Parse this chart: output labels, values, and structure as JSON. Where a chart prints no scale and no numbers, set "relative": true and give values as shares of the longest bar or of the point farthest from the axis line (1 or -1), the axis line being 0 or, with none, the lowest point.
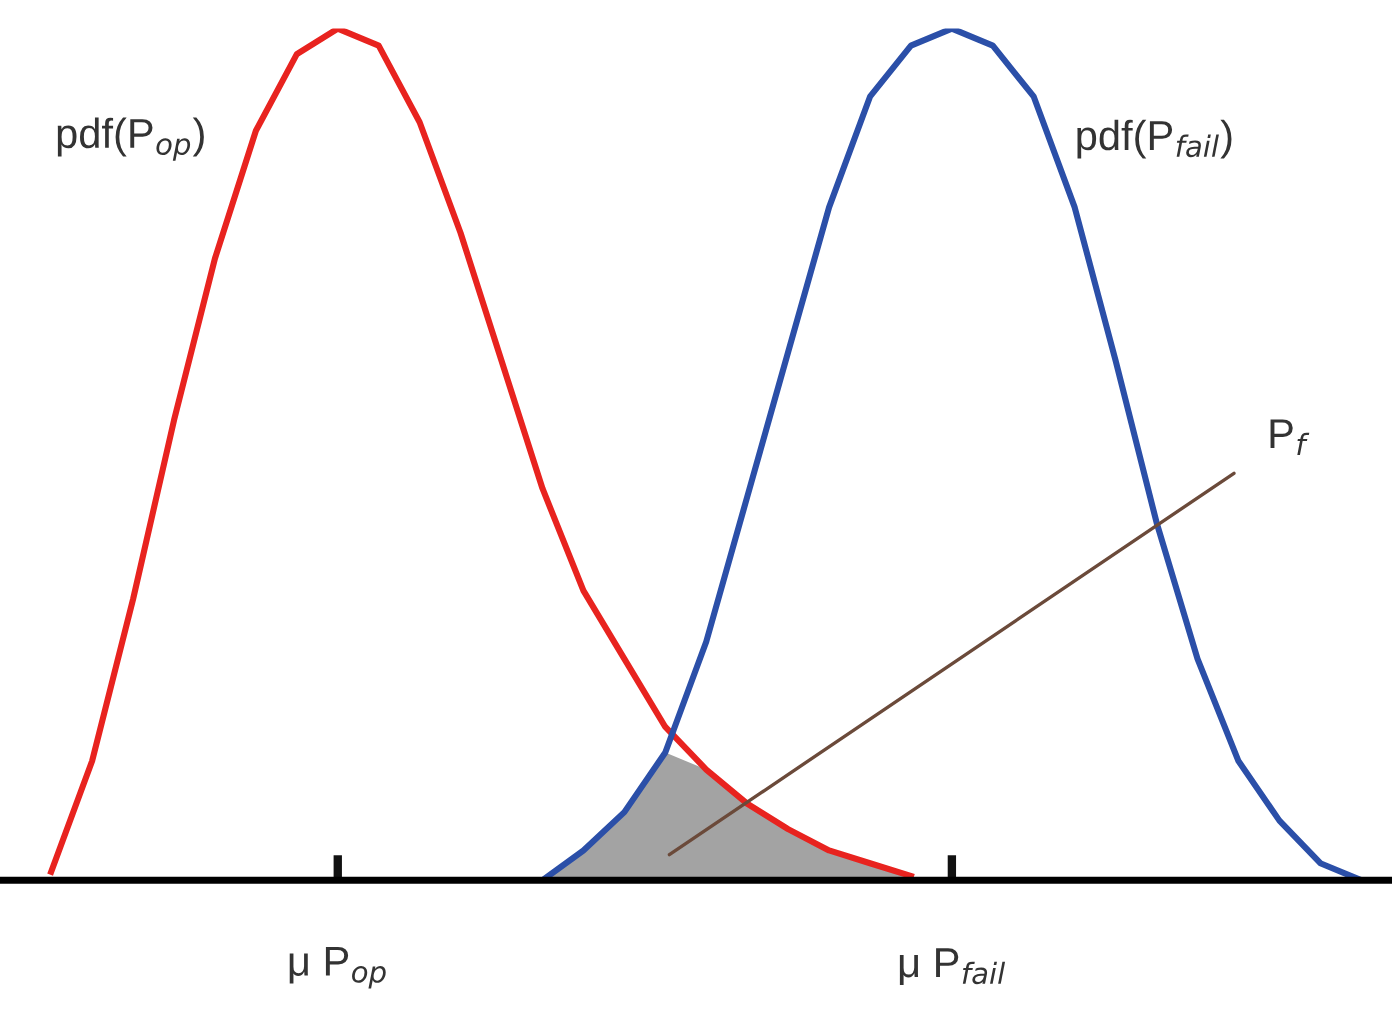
{
  "chart_data": {
    "type": "line",
    "relative": true,
    "grid": false,
    "legend": false,
    "marker": "none",
    "line_style": "solid",
    "categories": [
      null,
      null,
      null,
      null,
      null,
      null,
      null,
      null,
      "μ P$_{op}$",
      null,
      null,
      null,
      null,
      null,
      null,
      null,
      null,
      null,
      null,
      null,
      null,
      null,
      null,
      "μ P$_{fail}$",
      null,
      null,
      null,
      null,
      null,
      null,
      null,
      null,
      null,
      null
    ],
    "series": [
      {
        "name": "pdf(P$_{op}$)",
        "color": "#e8231f",
        "values": [
          null,
          0.01,
          0.14,
          0.33,
          0.54,
          0.73,
          0.88,
          0.97,
          1.0,
          0.98,
          0.89,
          0.76,
          0.61,
          0.46,
          0.34,
          0.26,
          0.18,
          0.13,
          0.09,
          0.06,
          0.035,
          0.02,
          0.005,
          null,
          null,
          null,
          null,
          null,
          null,
          null,
          null,
          null,
          null,
          null
        ]
      },
      {
        "name": "pdf(P$_{fail}$)",
        "color": "#2b4fa8",
        "values": [
          null,
          null,
          null,
          null,
          null,
          null,
          null,
          null,
          null,
          null,
          null,
          null,
          null,
          0,
          0.035,
          0.08,
          0.15,
          0.28,
          0.45,
          0.62,
          0.79,
          0.92,
          0.98,
          1.0,
          0.98,
          0.92,
          0.79,
          0.61,
          0.42,
          0.26,
          0.14,
          0.07,
          0.02,
          0
        ]
      },
      {
        "type": "area",
        "color": "#a3a3a3",
        "values": [
          null,
          null,
          null,
          null,
          null,
          null,
          null,
          null,
          null,
          null,
          null,
          null,
          null,
          0,
          0.035,
          0.08,
          0.15,
          0.13,
          0.09,
          0.06,
          0.035,
          0.02,
          0.005,
          null,
          null,
          null,
          null,
          null,
          null,
          null,
          null,
          null,
          null,
          null
        ]
      }
    ],
    "annotations": [
      "P$_{f}$"
    ]
  }
}
